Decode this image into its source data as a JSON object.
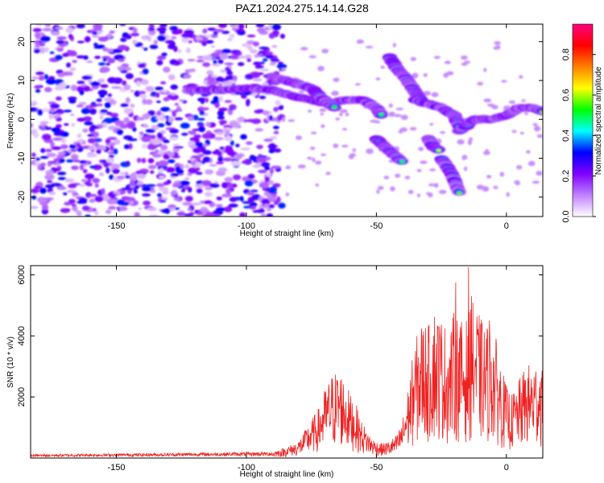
{
  "title": "PAZ1.2024.275.14.14.G28",
  "chart_data": [
    {
      "type": "heatmap",
      "name": "spectrogram",
      "xlabel": "Height of straight line (km)",
      "ylabel": "Frequency (Hz)",
      "xlim": [
        -183,
        14
      ],
      "ylim": [
        -25,
        24.5
      ],
      "xticks": [
        -150,
        -100,
        -50,
        0
      ],
      "yticks": [
        -20,
        -10,
        0,
        10,
        20
      ],
      "colorbar": {
        "label": "Normalized spectral amplitude",
        "range": [
          0,
          0.95
        ],
        "ticks": [
          0.0,
          0.2,
          0.4,
          0.6,
          0.8
        ],
        "colors": [
          "#ffffff",
          "#c080ff",
          "#8000ff",
          "#0000ff",
          "#00ffff",
          "#00ff00",
          "#ffff00",
          "#ff8000",
          "#ff0000",
          "#ff0080"
        ]
      },
      "ridges": [
        {
          "x": [
            -122,
            -110,
            -100,
            -90,
            -82,
            -75,
            -68,
            -62,
            -55,
            -50,
            -48
          ],
          "y": [
            7.5,
            7.5,
            8,
            7.5,
            6,
            5,
            4,
            5,
            5,
            3,
            1
          ]
        },
        {
          "x": [
            -90,
            -85,
            -80,
            -75,
            -70,
            -66
          ],
          "y": [
            11,
            10,
            9,
            8,
            5,
            3
          ]
        },
        {
          "x": [
            -45,
            -42,
            -38,
            -35,
            -32
          ],
          "y": [
            16,
            13,
            10,
            7,
            4
          ]
        },
        {
          "x": [
            -35,
            -30,
            -25,
            -20,
            -18
          ],
          "y": [
            5,
            4,
            3,
            1,
            -2
          ]
        },
        {
          "x": [
            -18,
            -12,
            -6,
            0,
            5,
            10,
            14
          ],
          "y": [
            -3,
            0,
            0,
            1,
            3,
            3,
            2
          ]
        },
        {
          "x": [
            -30,
            -28,
            -26
          ],
          "y": [
            -5,
            -7,
            -8
          ]
        },
        {
          "x": [
            -50,
            -45,
            -40
          ],
          "y": [
            -5,
            -8,
            -11
          ]
        },
        {
          "x": [
            -25,
            -21,
            -18
          ],
          "y": [
            -10,
            -14,
            -19
          ]
        }
      ]
    },
    {
      "type": "line",
      "name": "snr",
      "xlabel": "Height of straight line (km)",
      "ylabel": "SNR (10 * v/v)",
      "xlim": [
        -183,
        14
      ],
      "ylim": [
        0,
        6300
      ],
      "xticks": [
        -150,
        -100,
        -50,
        0
      ],
      "yticks": [
        2000,
        4000,
        6000
      ],
      "color": "#ee2222",
      "envelope": {
        "x": [
          -183,
          -90,
          -85,
          -80,
          -75,
          -72,
          -70,
          -67,
          -64,
          -62,
          -60,
          -58,
          -56,
          -54,
          -52,
          -50,
          -48,
          -45,
          -42,
          -40,
          -38,
          -36,
          -34,
          -32,
          -30,
          -28,
          -26,
          -24,
          -22,
          -20,
          -18,
          -16,
          -14,
          -12,
          -10,
          -8,
          -6,
          -4,
          -2,
          0,
          2,
          4,
          6,
          8,
          10,
          12,
          14
        ],
        "y": [
          90,
          150,
          250,
          400,
          900,
          1200,
          1600,
          2000,
          2100,
          1800,
          1500,
          1300,
          900,
          700,
          500,
          400,
          350,
          400,
          550,
          900,
          1600,
          2400,
          3000,
          3300,
          3100,
          3600,
          3400,
          3200,
          2900,
          3500,
          3300,
          3100,
          3700,
          3600,
          3300,
          3100,
          3200,
          2800,
          2200,
          1700,
          1500,
          1700,
          2000,
          2200,
          2200,
          2300,
          2300
        ]
      }
    }
  ]
}
